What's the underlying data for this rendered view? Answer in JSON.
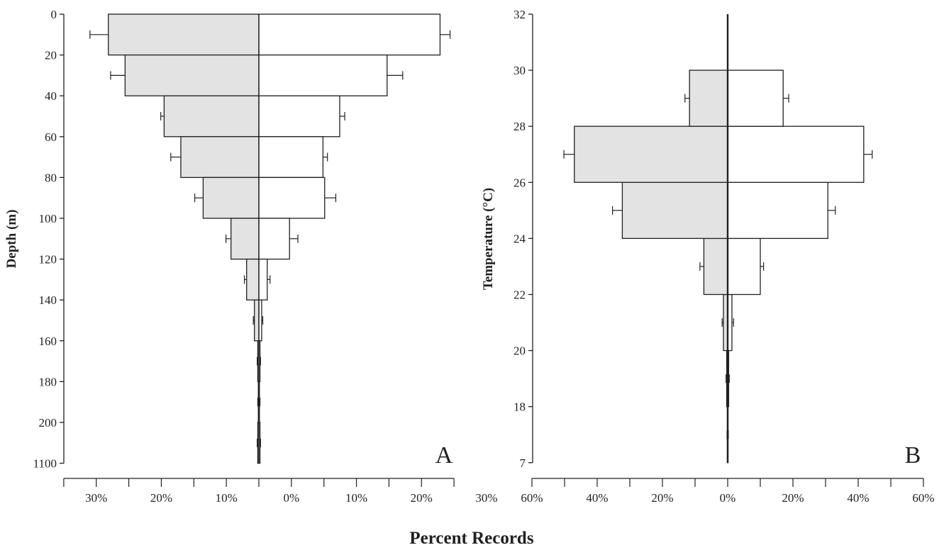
{
  "figure": {
    "bottom_title": "Percent Records"
  },
  "chart_data": [
    {
      "type": "bar",
      "orientation": "horizontal-back-to-back",
      "panel_label": "A",
      "ylabel": "Depth (m)",
      "y_tick_labels": [
        "0",
        "20",
        "40",
        "60",
        "80",
        "100",
        "120",
        "140",
        "160",
        "180",
        "200",
        "1100"
      ],
      "x_tick_labels": [
        "30%",
        "20%",
        "10%",
        "0%",
        "10%",
        "20%",
        "30%"
      ],
      "xlim": [
        -35,
        35
      ],
      "categories": [
        "0-20",
        "20-40",
        "40-60",
        "60-80",
        "80-100",
        "100-120",
        "120-140",
        "140-160",
        "160-180",
        "180-200",
        "200-1100"
      ],
      "colors": {
        "left": "#e3e3e3",
        "right": "#ffffff",
        "stroke": "#231f20"
      },
      "series": [
        {
          "side": "left",
          "values": [
            27,
            24,
            17,
            14,
            10,
            5,
            2.2,
            0.8,
            0.2,
            0.1,
            0.2
          ],
          "errors": [
            3.3,
            2.6,
            0.6,
            1.8,
            1.5,
            0.9,
            0.4,
            0.2,
            0.1,
            0.1,
            0.1
          ]
        },
        {
          "side": "right",
          "values": [
            32.5,
            23,
            14.5,
            11.5,
            11.8,
            5.5,
            1.5,
            0.5,
            0.2,
            0.1,
            0.2
          ],
          "errors": [
            1.8,
            2.8,
            0.9,
            0.8,
            2.0,
            1.5,
            0.5,
            0.2,
            0.1,
            0.1,
            0.1
          ]
        }
      ]
    },
    {
      "type": "bar",
      "orientation": "horizontal-back-to-back",
      "panel_label": "B",
      "ylabel": "Temperature (°C)",
      "y_tick_labels": [
        "7",
        "18",
        "20",
        "22",
        "24",
        "26",
        "28",
        "30",
        "32"
      ],
      "x_tick_labels": [
        "60%",
        "40%",
        "20%",
        "0%",
        "20%",
        "40%",
        "60%"
      ],
      "xlim": [
        -60,
        60
      ],
      "categories": [
        "7-18",
        "18-20",
        "20-22",
        "22-24",
        "24-26",
        "26-28",
        "28-30",
        "30-32"
      ],
      "colors": {
        "left": "#e3e3e3",
        "right": "#ffffff",
        "stroke": "#231f20"
      },
      "series": [
        {
          "side": "left",
          "values": [
            0.1,
            0.3,
            1.3,
            7.3,
            32.3,
            47,
            11.7,
            0
          ],
          "errors": [
            0.1,
            0.2,
            0.4,
            1.2,
            3.0,
            3.2,
            1.4,
            0
          ]
        },
        {
          "side": "right",
          "values": [
            0.1,
            0.3,
            1.3,
            10,
            30.7,
            41.7,
            17,
            0
          ],
          "errors": [
            0.1,
            0.2,
            0.5,
            1.0,
            2.3,
            2.6,
            1.7,
            0
          ]
        }
      ]
    }
  ]
}
